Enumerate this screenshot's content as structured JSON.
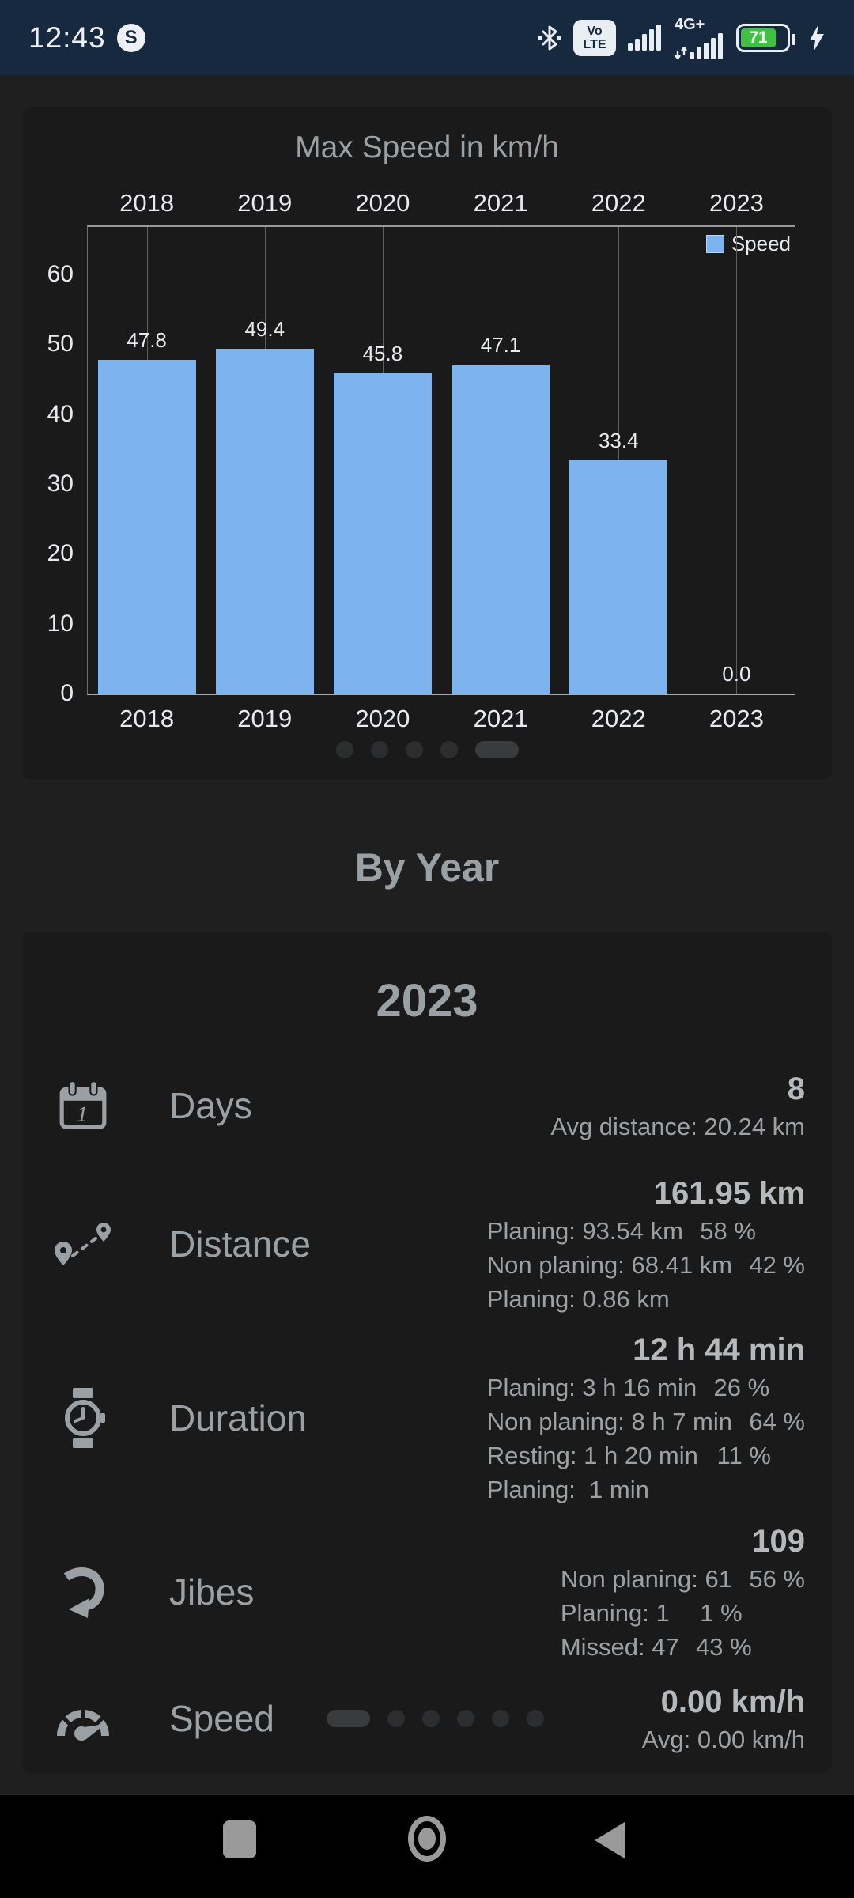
{
  "status_bar": {
    "time": "12:43",
    "skype_letter": "S",
    "volte_line1": "Vo",
    "volte_line2": "LTE",
    "network": "4G+",
    "battery_percent": "71",
    "icons": [
      "bluetooth-icon",
      "volte-badge",
      "signal-bars-icon",
      "signal-bars-icon",
      "battery-icon",
      "charging-bolt-icon"
    ]
  },
  "chart_card": {
    "title": "Max Speed in km/h",
    "legend_label": "Speed",
    "pager": {
      "count": 5,
      "active_index": 4
    }
  },
  "chart_data": {
    "type": "bar",
    "title": "Max Speed in km/h",
    "categories": [
      "2018",
      "2019",
      "2020",
      "2021",
      "2022",
      "2023"
    ],
    "values": [
      47.8,
      49.4,
      45.8,
      47.1,
      33.4,
      0.0
    ],
    "value_labels": [
      "47.8",
      "49.4",
      "45.8",
      "47.1",
      "33.4",
      "0.0"
    ],
    "series_name": "Speed",
    "bar_color": "#7db4f0",
    "ylim": [
      0,
      66.8
    ],
    "yticks": [
      0,
      10,
      20,
      30,
      40,
      50,
      60
    ],
    "grid": "vertical-category-lines",
    "legend_position": "top-right",
    "x_axis_labels": "top and bottom"
  },
  "by_year": {
    "heading": "By Year"
  },
  "year_card": {
    "year": "2023",
    "pager": {
      "count": 6,
      "active_index": 0
    },
    "rows": [
      {
        "id": "days",
        "icon": "calendar-icon",
        "label": "Days",
        "value": "8",
        "sublines": [
          {
            "text": "Avg distance: 20.24 km"
          }
        ]
      },
      {
        "id": "distance",
        "icon": "route-pins-icon",
        "label": "Distance",
        "value": "161.95 km",
        "sublines": [
          {
            "text": "Planing: 93.54 km",
            "pct": "58 %"
          },
          {
            "text": "Non planing: 68.41 km",
            "pct": "42 %"
          },
          {
            "text": "Planing: 0.86 km"
          }
        ]
      },
      {
        "id": "duration",
        "icon": "watch-icon",
        "label": "Duration",
        "value": "12 h 44 min",
        "sublines": [
          {
            "text": "Planing: 3 h 16 min",
            "pct": "26 %"
          },
          {
            "text": "Non planing: 8 h 7 min",
            "pct": "64 %"
          },
          {
            "text": "Resting: 1 h 20 min",
            "pct": "11 %"
          },
          {
            "text": "Planing:  1 min"
          }
        ]
      },
      {
        "id": "jibes",
        "icon": "jibe-arrow-icon",
        "label": "Jibes",
        "value": "109",
        "sublines": [
          {
            "text": "Non planing: 61",
            "pct": "56 %"
          },
          {
            "text": "Planing: 1",
            "pct": "1 %"
          },
          {
            "text": "Missed: 47",
            "pct": "43 %"
          }
        ]
      },
      {
        "id": "speed",
        "icon": "speedometer-icon",
        "label": "Speed",
        "value": "0.00 km/h",
        "sublines": [
          {
            "text": "Avg: 0.00 km/h"
          }
        ]
      }
    ]
  },
  "nav": {
    "buttons": [
      "recents-button",
      "home-button",
      "back-button"
    ]
  },
  "colors": {
    "page_bg": "#1f1f20",
    "card_bg": "#1a1a1b",
    "statusbar_bg": "#16293e",
    "bar_blue": "#7db4f0",
    "battery_green": "#42c043",
    "text_gray": "#9aa0a3",
    "text_white": "#e8eaed",
    "value_gray": "#b6b9bc",
    "nav_icon_gray": "#9a9a9a"
  }
}
